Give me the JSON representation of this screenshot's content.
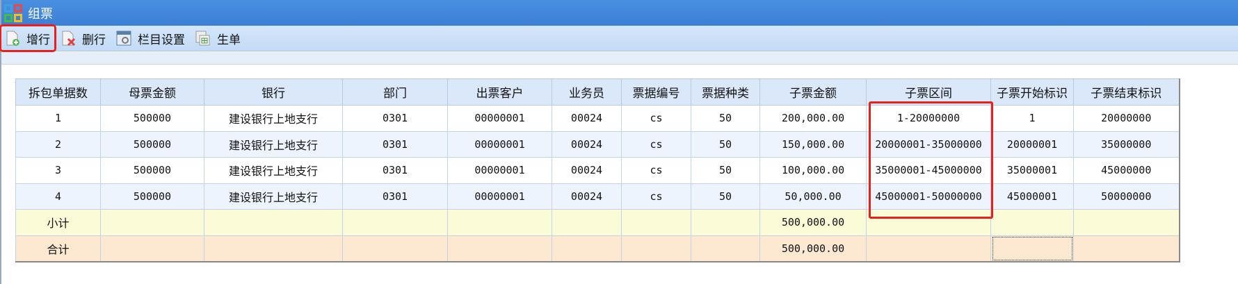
{
  "window": {
    "title": "组票"
  },
  "toolbar": {
    "items": [
      {
        "label": "增行",
        "icon": "add-row-icon",
        "highlighted": true
      },
      {
        "label": "删行",
        "icon": "delete-row-icon"
      },
      {
        "label": "栏目设置",
        "icon": "column-settings-icon"
      },
      {
        "label": "生单",
        "icon": "generate-document-icon"
      }
    ]
  },
  "table": {
    "columns": [
      "拆包单据数",
      "母票金额",
      "银行",
      "部门",
      "出票客户",
      "业务员",
      "票据编号",
      "票据种类",
      "子票金额",
      "子票区间",
      "子票开始标识",
      "子票结束标识"
    ],
    "rows": [
      [
        "1",
        "500000",
        "建设银行上地支行",
        "0301",
        "00000001",
        "00024",
        "cs",
        "50",
        "200,000.00",
        "1-20000000",
        "1",
        "20000000"
      ],
      [
        "2",
        "500000",
        "建设银行上地支行",
        "0301",
        "00000001",
        "00024",
        "cs",
        "50",
        "150,000.00",
        "20000001-35000000",
        "20000001",
        "35000000"
      ],
      [
        "3",
        "500000",
        "建设银行上地支行",
        "0301",
        "00000001",
        "00024",
        "cs",
        "50",
        "100,000.00",
        "35000001-45000000",
        "35000001",
        "45000000"
      ],
      [
        "4",
        "500000",
        "建设银行上地支行",
        "0301",
        "00000001",
        "00024",
        "cs",
        "50",
        "50,000.00",
        "45000001-50000000",
        "45000001",
        "50000000"
      ]
    ],
    "subtotal": {
      "label": "小计",
      "amount": "500,000.00"
    },
    "total": {
      "label": "合计",
      "amount": "500,000.00"
    }
  },
  "colors": {
    "highlight": "#e8201c",
    "header": "#dbe8fa",
    "subtotal_row": "#fbfbd8",
    "total_row": "#fde9d2"
  }
}
